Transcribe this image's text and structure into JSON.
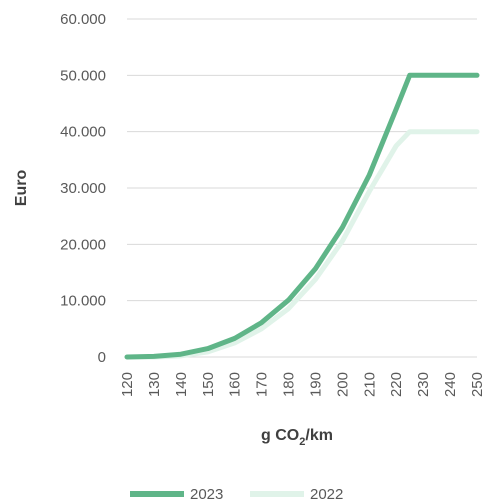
{
  "chart_data": {
    "type": "line",
    "xlabel": "g CO2/km",
    "xlabel_main": "g CO",
    "xlabel_sub": "2",
    "xlabel_suffix": "/km",
    "ylabel": "Euro",
    "xlim": [
      120,
      250
    ],
    "ylim": [
      0,
      60000
    ],
    "x_ticks": [
      "120",
      "130",
      "140",
      "150",
      "160",
      "170",
      "180",
      "190",
      "200",
      "210",
      "220",
      "230",
      "240",
      "250"
    ],
    "y_ticks": [
      "0",
      "10.000",
      "20.000",
      "30.000",
      "40.000",
      "50.000",
      "60.000"
    ],
    "grid": true,
    "legend_position": "bottom",
    "x": [
      120,
      130,
      140,
      150,
      160,
      170,
      180,
      190,
      200,
      210,
      220,
      225,
      230,
      240,
      250
    ],
    "series": [
      {
        "name": "2023",
        "color": "#5fb588",
        "values": [
          0,
          100,
          500,
          1500,
          3300,
          6100,
          10100,
          15700,
          23000,
          32300,
          44000,
          50000,
          50000,
          50000,
          50000
        ]
      },
      {
        "name": "2022",
        "color": "#e0f3e9",
        "values": [
          0,
          0,
          200,
          900,
          2500,
          5000,
          8600,
          13800,
          20600,
          29400,
          37500,
          40000,
          40000,
          40000,
          40000
        ]
      }
    ]
  }
}
